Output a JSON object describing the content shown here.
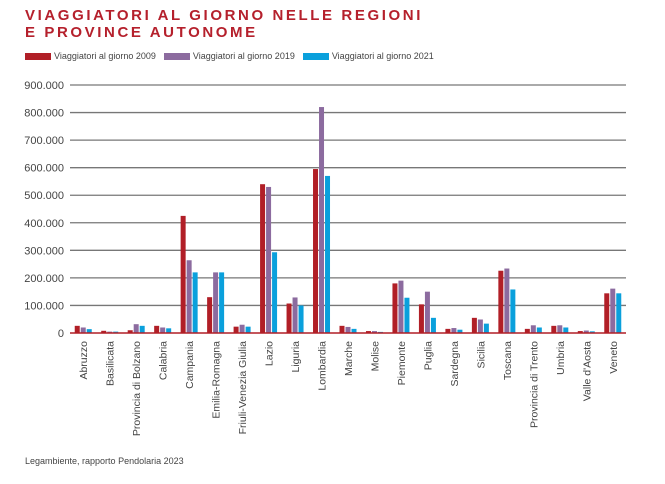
{
  "chart_data": {
    "type": "bar",
    "title": "VIAGGIATORI AL GIORNO NELLE REGIONI E PROVINCE AUTONOME",
    "title_lines": [
      "VIAGGIATORI AL GIORNO NELLE REGIONI",
      "E PROVINCE AUTONOME"
    ],
    "xlabel": "",
    "ylabel": "",
    "ylim": [
      0,
      900000
    ],
    "yticks": [
      0,
      100000,
      200000,
      300000,
      400000,
      500000,
      600000,
      700000,
      800000,
      900000
    ],
    "ytick_labels": [
      "0",
      "100.000",
      "200.000",
      "300.000",
      "400.000",
      "500.000",
      "600.000",
      "700.000",
      "800.000",
      "900.000"
    ],
    "grid": true,
    "legend_position": "top-left",
    "categories": [
      "Abruzzo",
      "Basilicata",
      "Provincia di Bolzano",
      "Calabria",
      "Campania",
      "Emilia-Romagna",
      "Friuli-Venezia Giulia",
      "Lazio",
      "Liguria",
      "Lombardia",
      "Marche",
      "Molise",
      "Piemonte",
      "Puglia",
      "Sardegna",
      "Sicilia",
      "Toscana",
      "Provincia di Trento",
      "Umbria",
      "Valle d'Aosta",
      "Veneto"
    ],
    "series": [
      {
        "name": "Viaggiatori al giorno 2009",
        "color": "#b11f27",
        "values": [
          26000,
          8000,
          10000,
          26000,
          425000,
          130000,
          23000,
          540000,
          107000,
          595000,
          26000,
          7000,
          180000,
          104000,
          15000,
          55000,
          226000,
          15000,
          26000,
          7000,
          144000
        ]
      },
      {
        "name": "Viaggiatori al giorno 2019",
        "color": "#8c6b9f",
        "values": [
          20000,
          5000,
          32000,
          20000,
          264000,
          220000,
          30000,
          530000,
          129000,
          820000,
          22000,
          7000,
          190000,
          150000,
          18000,
          49000,
          234000,
          28000,
          28000,
          9000,
          161000
        ]
      },
      {
        "name": "Viaggiatori al giorno 2021",
        "color": "#0aa0dc",
        "values": [
          14000,
          5000,
          26000,
          17000,
          220000,
          220000,
          23000,
          293000,
          100000,
          570000,
          15000,
          4000,
          128000,
          55000,
          12000,
          34000,
          158000,
          20000,
          20000,
          6000,
          144000
        ]
      }
    ]
  },
  "source": "Legambiente, rapporto Pendolaria 2023"
}
